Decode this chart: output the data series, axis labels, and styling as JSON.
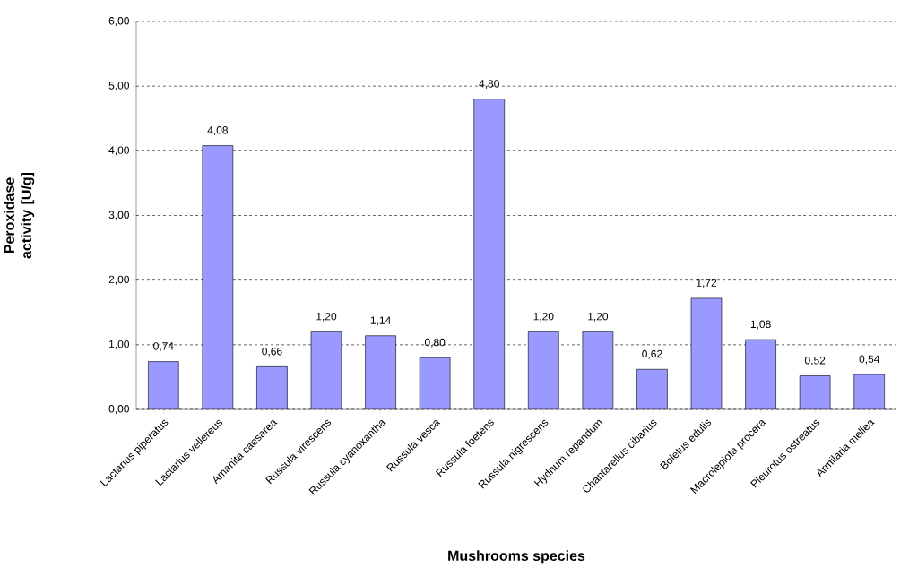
{
  "chart_data": {
    "type": "bar",
    "xlabel": "Mushrooms species",
    "ylabel": "Peroxidase activity [U/g]",
    "categories": [
      "Lactarius piperatus",
      "Lactarius vellereus",
      "Amanita caesarea",
      "Russula virescens",
      "Russula cyanoxantha",
      "Russula vesca",
      "Russula foetens",
      "Russula nigrescens",
      "Hydnum repandum",
      "Chantarellus cibarius",
      "Boletus edulis",
      "Macrolepiota procera",
      "Pleurotus ostreatus",
      "Armilaria mellea"
    ],
    "values": [
      0.74,
      4.08,
      0.66,
      1.2,
      1.14,
      0.8,
      4.8,
      1.2,
      1.2,
      0.62,
      1.72,
      1.08,
      0.52,
      0.54
    ],
    "value_labels": [
      "0,74",
      "4,08",
      "0,66",
      "1,20",
      "1,14",
      "0,80",
      "4,80",
      "1,20",
      "1,20",
      "0,62",
      "1,72",
      "1,08",
      "0,52",
      "0,54"
    ],
    "color": "#9999ff",
    "ylim": [
      0,
      6
    ],
    "yticks": [
      {
        "value": 0,
        "label": "0,00"
      },
      {
        "value": 1,
        "label": "1,00"
      },
      {
        "value": 2,
        "label": "2,00"
      },
      {
        "value": 3,
        "label": "3,00"
      },
      {
        "value": 4,
        "label": "4,00"
      },
      {
        "value": 5,
        "label": "5,00"
      },
      {
        "value": 6,
        "label": "6,00"
      }
    ],
    "grid": "y"
  }
}
